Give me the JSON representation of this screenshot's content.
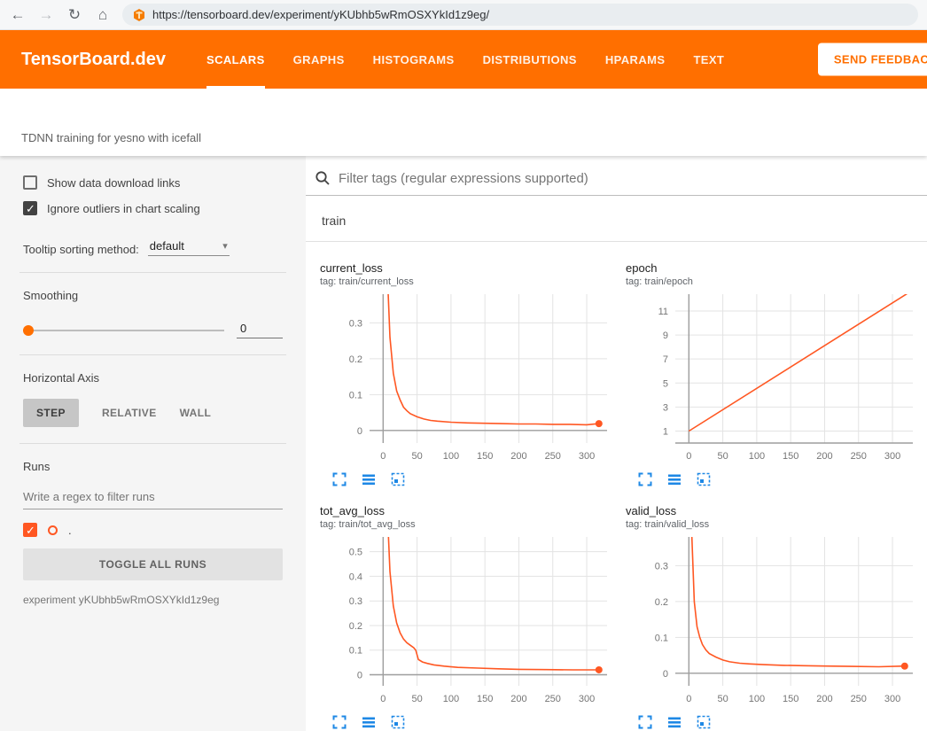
{
  "browser": {
    "url": "https://tensorboard.dev/experiment/yKUbhb5wRmOSXYkId1z9eg/",
    "icons": {
      "back": "←",
      "forward": "→",
      "reload": "↻",
      "home": "⌂",
      "caret": "▾"
    }
  },
  "header": {
    "logo": "TensorBoard.dev",
    "tabs": [
      {
        "label": "SCALARS",
        "active": true
      },
      {
        "label": "GRAPHS",
        "active": false
      },
      {
        "label": "HISTOGRAMS",
        "active": false
      },
      {
        "label": "DISTRIBUTIONS",
        "active": false
      },
      {
        "label": "HPARAMS",
        "active": false
      },
      {
        "label": "TEXT",
        "active": false
      }
    ],
    "feedback": "SEND FEEDBACK"
  },
  "experiment": {
    "title": "TDNN training for yesno with icefall"
  },
  "sidebar": {
    "download_links": {
      "label": "Show data download links",
      "checked": false
    },
    "outliers": {
      "label": "Ignore outliers in chart scaling",
      "checked": true
    },
    "tooltip": {
      "label": "Tooltip sorting method:",
      "value": "default"
    },
    "smoothing": {
      "label": "Smoothing",
      "value": "0"
    },
    "axis": {
      "label": "Horizontal Axis",
      "options": [
        "STEP",
        "RELATIVE",
        "WALL"
      ],
      "selected": "STEP"
    },
    "runs": {
      "label": "Runs",
      "placeholder": "Write a regex to filter runs",
      "run_name": ".",
      "run_checked": true,
      "toggle_all": "TOGGLE ALL RUNS",
      "note": "experiment yKUbhb5wRmOSXYkId1z9eg"
    }
  },
  "main": {
    "filter_placeholder": "Filter tags (regular expressions supported)",
    "group": "train"
  },
  "colors": {
    "accent": "#ff6f00",
    "run": "#ff5722",
    "chart_icon": "#1e88e5"
  },
  "chart_data": [
    {
      "type": "line",
      "title": "current_loss",
      "tag": "tag: train/current_loss",
      "xlim": [
        -20,
        330
      ],
      "ylim": [
        -0.035,
        0.38
      ],
      "xticks": [
        0,
        50,
        100,
        150,
        200,
        250,
        300
      ],
      "yticks": [
        0,
        0.1,
        0.2,
        0.3
      ],
      "color": "#ff5722",
      "end_dot": true,
      "points": [
        [
          0,
          1.5
        ],
        [
          5,
          0.5
        ],
        [
          10,
          0.26
        ],
        [
          15,
          0.16
        ],
        [
          20,
          0.11
        ],
        [
          25,
          0.085
        ],
        [
          30,
          0.065
        ],
        [
          35,
          0.055
        ],
        [
          40,
          0.047
        ],
        [
          50,
          0.038
        ],
        [
          60,
          0.032
        ],
        [
          70,
          0.028
        ],
        [
          80,
          0.026
        ],
        [
          100,
          0.023
        ],
        [
          125,
          0.021
        ],
        [
          150,
          0.02
        ],
        [
          175,
          0.019
        ],
        [
          200,
          0.018
        ],
        [
          225,
          0.018
        ],
        [
          250,
          0.017
        ],
        [
          275,
          0.017
        ],
        [
          300,
          0.016
        ],
        [
          318,
          0.019
        ]
      ]
    },
    {
      "type": "line",
      "title": "epoch",
      "tag": "tag: train/epoch",
      "xlim": [
        -20,
        330
      ],
      "ylim": [
        0,
        12.4
      ],
      "xticks": [
        0,
        50,
        100,
        150,
        200,
        250,
        300
      ],
      "yticks": [
        1,
        3,
        5,
        7,
        9,
        11
      ],
      "color": "#ff5722",
      "end_dot": false,
      "points": [
        [
          0,
          1
        ],
        [
          326,
          12.6
        ]
      ]
    },
    {
      "type": "line",
      "title": "tot_avg_loss",
      "tag": "tag: train/tot_avg_loss",
      "xlim": [
        -20,
        330
      ],
      "ylim": [
        -0.045,
        0.56
      ],
      "xticks": [
        0,
        50,
        100,
        150,
        200,
        250,
        300
      ],
      "yticks": [
        0,
        0.1,
        0.2,
        0.3,
        0.4,
        0.5
      ],
      "color": "#ff5722",
      "end_dot": true,
      "points": [
        [
          0,
          1.7
        ],
        [
          5,
          0.75
        ],
        [
          10,
          0.42
        ],
        [
          15,
          0.28
        ],
        [
          20,
          0.21
        ],
        [
          25,
          0.17
        ],
        [
          30,
          0.145
        ],
        [
          35,
          0.13
        ],
        [
          40,
          0.12
        ],
        [
          45,
          0.11
        ],
        [
          48,
          0.1
        ],
        [
          52,
          0.062
        ],
        [
          58,
          0.052
        ],
        [
          65,
          0.046
        ],
        [
          75,
          0.04
        ],
        [
          90,
          0.035
        ],
        [
          110,
          0.03
        ],
        [
          140,
          0.027
        ],
        [
          170,
          0.024
        ],
        [
          200,
          0.022
        ],
        [
          240,
          0.021
        ],
        [
          280,
          0.02
        ],
        [
          318,
          0.02
        ]
      ]
    },
    {
      "type": "line",
      "title": "valid_loss",
      "tag": "tag: train/valid_loss",
      "xlim": [
        -20,
        330
      ],
      "ylim": [
        -0.035,
        0.38
      ],
      "xticks": [
        0,
        50,
        100,
        150,
        200,
        250,
        300
      ],
      "yticks": [
        0,
        0.1,
        0.2,
        0.3
      ],
      "color": "#ff5722",
      "end_dot": true,
      "points": [
        [
          0,
          1.0
        ],
        [
          4,
          0.4
        ],
        [
          8,
          0.2
        ],
        [
          12,
          0.13
        ],
        [
          16,
          0.1
        ],
        [
          20,
          0.08
        ],
        [
          25,
          0.065
        ],
        [
          30,
          0.055
        ],
        [
          40,
          0.045
        ],
        [
          50,
          0.037
        ],
        [
          60,
          0.032
        ],
        [
          75,
          0.028
        ],
        [
          90,
          0.026
        ],
        [
          110,
          0.024
        ],
        [
          140,
          0.022
        ],
        [
          170,
          0.021
        ],
        [
          200,
          0.02
        ],
        [
          240,
          0.019
        ],
        [
          280,
          0.018
        ],
        [
          318,
          0.02
        ]
      ]
    }
  ]
}
